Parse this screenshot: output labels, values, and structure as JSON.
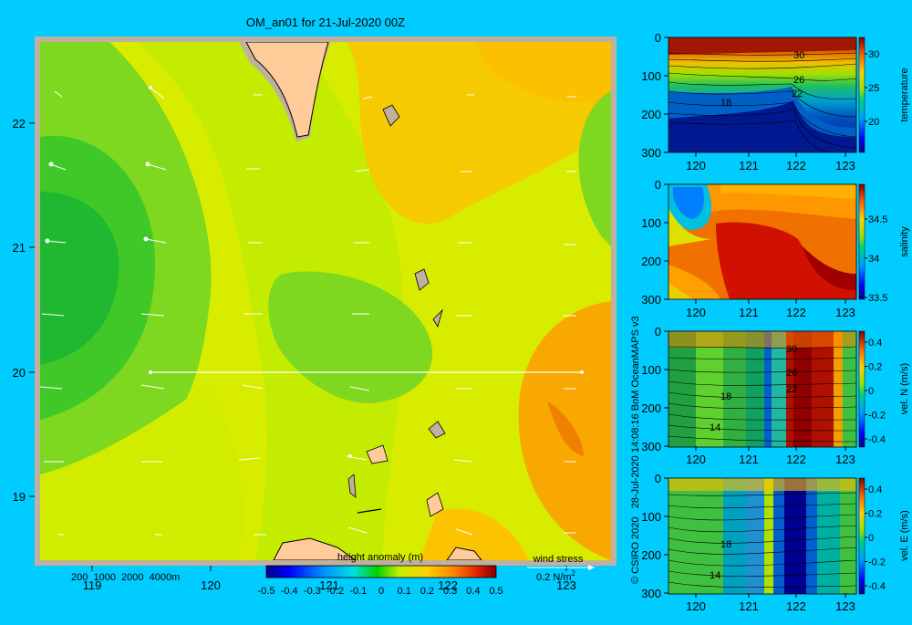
{
  "title": "OM_an01 for 21-Jul-2020 00Z",
  "main_map": {
    "x_ticks": [
      "119",
      "120",
      "121",
      "122",
      "123"
    ],
    "y_ticks": [
      "22",
      "21",
      "20",
      "19"
    ],
    "depth_legend": "200  1000  2000  4000m",
    "colorbar_label": "height anomaly (m)",
    "colorbar_ticks": [
      "-0.5",
      "-0.4",
      "-0.3",
      "-0.2",
      "-0.1",
      "0",
      "0.1",
      "0.2",
      "0.3",
      "0.4",
      "0.5"
    ],
    "wind_label": "wind stress",
    "wind_scale": "0.2 N/m",
    "wind_scale_sup": "2"
  },
  "credit": "© CSIRO 2020   28-Jul-2020 14:08:16 BoM OceanMAPS v3",
  "panels": [
    {
      "name": "temperature",
      "label": "temperature",
      "x_ticks": [
        "120",
        "121",
        "122",
        "123"
      ],
      "y_ticks": [
        "0",
        "100",
        "200",
        "300"
      ],
      "cb_ticks": [
        "30",
        "25",
        "20"
      ],
      "contour_labels": [
        "30",
        "26",
        "22",
        "18"
      ]
    },
    {
      "name": "salinity",
      "label": "salinity",
      "x_ticks": [
        "120",
        "121",
        "122",
        "123"
      ],
      "y_ticks": [
        "0",
        "100",
        "200",
        "300"
      ],
      "cb_ticks": [
        "34.5",
        "34",
        "33.5"
      ],
      "contour_labels": []
    },
    {
      "name": "velocity-north",
      "label": "vel. N (m/s)",
      "x_ticks": [
        "120",
        "121",
        "122",
        "123"
      ],
      "y_ticks": [
        "0",
        "100",
        "200",
        "300"
      ],
      "cb_ticks": [
        "0.4",
        "0.2",
        "0",
        "-0.2",
        "-0.4"
      ],
      "contour_labels": [
        "30",
        "26",
        "22",
        "18",
        "14"
      ]
    },
    {
      "name": "velocity-east",
      "label": "vel. E (m/s)",
      "x_ticks": [
        "120",
        "121",
        "122",
        "123"
      ],
      "y_ticks": [
        "0",
        "100",
        "200",
        "300"
      ],
      "cb_ticks": [
        "0.4",
        "0.2",
        "0",
        "-0.2",
        "-0.4"
      ],
      "contour_labels": [
        "18",
        "14"
      ]
    }
  ]
}
